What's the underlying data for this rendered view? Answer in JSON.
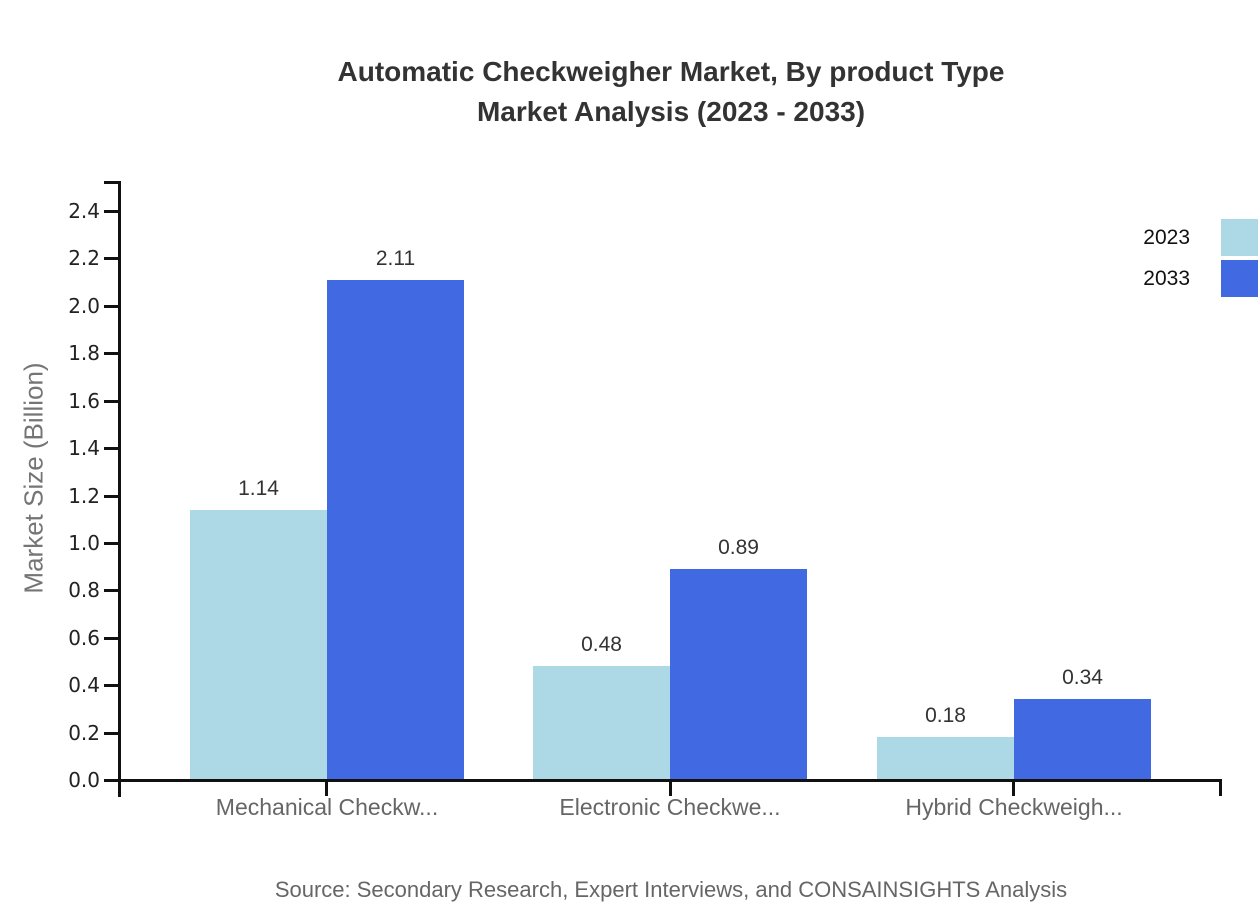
{
  "title": {
    "line1": "Automatic Checkweigher Market, By product Type",
    "line2": "Market Analysis (2023 - 2033)"
  },
  "source": "Source: Secondary Research, Expert Interviews, and CONSAINSIGHTS Analysis",
  "legend": {
    "items": [
      {
        "label": "2023",
        "color": "#ADD8E6"
      },
      {
        "label": "2033",
        "color": "#4169E1"
      }
    ]
  },
  "colors": {
    "axis": "#111111",
    "title_text": "#333333",
    "value_label_text": "#333333",
    "tick_label_text": "#222222",
    "category_text": "#666666",
    "source_text": "#666666",
    "y_axis_title_text": "#757575"
  },
  "chart_data": {
    "type": "bar",
    "title": "Automatic Checkweigher Market, By product Type Market Analysis (2023 - 2033)",
    "categories": [
      "Mechanical Checkw...",
      "Electronic Checkwe...",
      "Hybrid Checkweigh..."
    ],
    "series": [
      {
        "name": "2023",
        "color": "#ADD8E6",
        "values": [
          1.14,
          0.48,
          0.18
        ],
        "labels": [
          "1.14",
          "0.48",
          "0.18"
        ]
      },
      {
        "name": "2033",
        "color": "#4169E1",
        "values": [
          2.11,
          0.89,
          0.34
        ],
        "labels": [
          "2.11",
          "0.89",
          "0.34"
        ]
      }
    ],
    "xlabel": "",
    "ylabel": "Market Size (Billion)",
    "ylim": [
      0.0,
      2.5
    ],
    "yticks": [
      "0.0",
      "0.2",
      "0.4",
      "0.6",
      "0.8",
      "1.0",
      "1.2",
      "1.4",
      "1.6",
      "1.8",
      "2.0",
      "2.2",
      "2.4"
    ],
    "ytick_values": [
      0.0,
      0.2,
      0.4,
      0.6,
      0.8,
      1.0,
      1.2,
      1.4,
      1.6,
      1.8,
      2.0,
      2.2,
      2.4
    ],
    "grid": false,
    "legend_position": "top-right",
    "value_labels_shown": true
  }
}
